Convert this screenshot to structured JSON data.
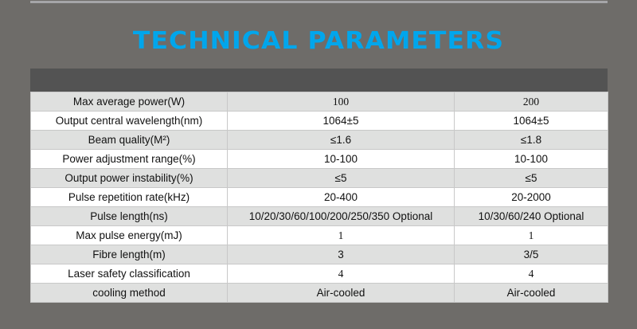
{
  "title": "TECHNICAL PARAMETERS",
  "accent_color": "#00a6ec",
  "rows": [
    {
      "label": "Max average power(W)",
      "a": "100",
      "b": "200"
    },
    {
      "label": "Output central wavelength(nm)",
      "a": "1064±5",
      "b": "1064±5"
    },
    {
      "label": "Beam quality(M²)",
      "a": "≤1.6",
      "b": "≤1.8"
    },
    {
      "label": "Power adjustment range(%)",
      "a": "10-100",
      "b": "10-100"
    },
    {
      "label": "Output power instability(%)",
      "a": "≤5",
      "b": "≤5"
    },
    {
      "label": "Pulse repetition rate(kHz)",
      "a": "20-400",
      "b": "20-2000"
    },
    {
      "label": "Pulse length(ns)",
      "a": "10/20/30/60/100/200/250/350 Optional",
      "b": "10/30/60/240 Optional"
    },
    {
      "label": "Max pulse energy(mJ)",
      "a": "1",
      "b": "1"
    },
    {
      "label": "Fibre length(m)",
      "a": "3",
      "b": "3/5"
    },
    {
      "label": "Laser safety classification",
      "a": "4",
      "b": "4"
    },
    {
      "label": "cooling method",
      "a": "Air-cooled",
      "b": "Air-cooled"
    }
  ]
}
